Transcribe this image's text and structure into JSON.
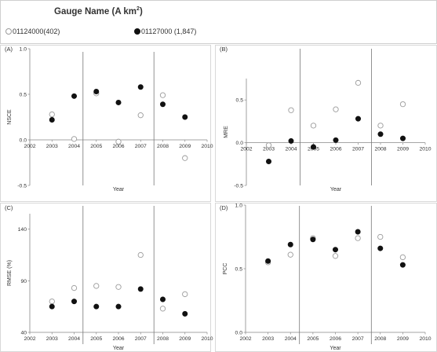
{
  "legend": {
    "title": "Gauge Name (A km²)",
    "title_main": "Gauge Name (A km",
    "title_sup": "2",
    "title_end": ")",
    "entries": [
      {
        "label": "01124000(402)",
        "marker": "open"
      },
      {
        "label": "01127000 (1,847)",
        "marker": "filled"
      }
    ]
  },
  "colors": {
    "open_marker_stroke": "#9b9b9b",
    "filled_marker": "#111111",
    "axis": "#888888",
    "divider": "#777777"
  },
  "chart_data": [
    {
      "panel": "(A)",
      "type": "scatter",
      "ylabel": "NSCE",
      "xlabel": "Year",
      "xlim": [
        2002,
        2010
      ],
      "ylim": [
        -0.5,
        1.0
      ],
      "xticks": [
        2002,
        2003,
        2004,
        2005,
        2006,
        2007,
        2008,
        2009,
        2010
      ],
      "xtick_labels": [
        "2002",
        "2003",
        "2004",
        "2005",
        "2006",
        "2007",
        "2008",
        "2009",
        "2010"
      ],
      "yticks": [
        -0.5,
        0,
        0.5,
        1.0
      ],
      "ytick_labels": [
        "-0.5",
        "0.0",
        "0.5",
        "1.0"
      ],
      "dividers": [
        2004.4,
        2007.6
      ],
      "series": [
        {
          "name": "01124000(402)",
          "marker": "open",
          "points": [
            [
              2003,
              0.28
            ],
            [
              2004,
              0.01
            ],
            [
              2005,
              0.51
            ],
            [
              2006,
              -0.02
            ],
            [
              2007,
              0.27
            ],
            [
              2008,
              0.49
            ],
            [
              2009,
              -0.2
            ]
          ]
        },
        {
          "name": "01127000 (1,847)",
          "marker": "filled",
          "points": [
            [
              2003,
              0.22
            ],
            [
              2004,
              0.48
            ],
            [
              2005,
              0.53
            ],
            [
              2006,
              0.41
            ],
            [
              2007,
              0.58
            ],
            [
              2008,
              0.39
            ],
            [
              2009,
              0.25
            ]
          ]
        }
      ]
    },
    {
      "panel": "(B)",
      "type": "scatter",
      "ylabel": "MRE",
      "xlabel": "Year",
      "xlim": [
        2002,
        2010
      ],
      "ylim": [
        -0.5,
        0.75
      ],
      "xticks": [
        2002,
        2003,
        2004,
        2005,
        2006,
        2007,
        2008,
        2009,
        2010
      ],
      "xtick_labels": [
        "2002",
        "2003",
        "2004",
        "2005",
        "2006",
        "2007",
        "2008",
        "2009",
        "2010"
      ],
      "yticks": [
        -0.5,
        0,
        0.5
      ],
      "ytick_labels": [
        "-0.5",
        "0.0",
        "0.5"
      ],
      "dividers": [
        2004.4,
        2007.6
      ],
      "series": [
        {
          "name": "01124000(402)",
          "marker": "open",
          "points": [
            [
              2003,
              -0.03
            ],
            [
              2004,
              0.38
            ],
            [
              2005,
              0.2
            ],
            [
              2006,
              0.39
            ],
            [
              2007,
              0.7
            ],
            [
              2008,
              0.2
            ],
            [
              2009,
              0.45
            ]
          ]
        },
        {
          "name": "01127000 (1,847)",
          "marker": "filled",
          "points": [
            [
              2003,
              -0.22
            ],
            [
              2004,
              0.02
            ],
            [
              2005,
              -0.05
            ],
            [
              2006,
              0.03
            ],
            [
              2007,
              0.28
            ],
            [
              2008,
              0.1
            ],
            [
              2009,
              0.05
            ]
          ]
        }
      ]
    },
    {
      "panel": "(C)",
      "type": "scatter",
      "ylabel": "RMSE (%)",
      "xlabel": "Year",
      "xlim": [
        2002,
        2010
      ],
      "ylim": [
        40,
        155
      ],
      "xticks": [
        2002,
        2003,
        2004,
        2005,
        2006,
        2007,
        2008,
        2009,
        2010
      ],
      "xtick_labels": [
        "2002",
        "2003",
        "2004",
        "2005",
        "2006",
        "2007",
        "2008",
        "2009",
        "2010"
      ],
      "yticks": [
        40,
        90,
        140
      ],
      "ytick_labels": [
        "40",
        "90",
        "140"
      ],
      "dividers": [
        2004.4,
        2007.6
      ],
      "series": [
        {
          "name": "01124000(402)",
          "marker": "open",
          "points": [
            [
              2003,
              70
            ],
            [
              2004,
              83
            ],
            [
              2005,
              85
            ],
            [
              2006,
              84
            ],
            [
              2007,
              115
            ],
            [
              2008,
              63
            ],
            [
              2009,
              77
            ]
          ]
        },
        {
          "name": "01127000 (1,847)",
          "marker": "filled",
          "points": [
            [
              2003,
              65
            ],
            [
              2004,
              70
            ],
            [
              2005,
              65
            ],
            [
              2006,
              65
            ],
            [
              2007,
              82
            ],
            [
              2008,
              72
            ],
            [
              2009,
              58
            ]
          ]
        }
      ]
    },
    {
      "panel": "(D)",
      "type": "scatter",
      "ylabel": "PCC",
      "xlabel": "Year",
      "xlim": [
        2002,
        2010
      ],
      "ylim": [
        0.0,
        1.0
      ],
      "xticks": [
        2002,
        2003,
        2004,
        2005,
        2006,
        2007,
        2008,
        2009,
        2010
      ],
      "xtick_labels": [
        "2002",
        "2003",
        "2004",
        "2005",
        "2006",
        "2007",
        "2008",
        "2009",
        "2010"
      ],
      "yticks": [
        0.0,
        0.5,
        1.0
      ],
      "ytick_labels": [
        "0.0",
        "0.5",
        "1.0"
      ],
      "dividers": [
        2004.4,
        2007.6
      ],
      "series": [
        {
          "name": "01124000(402)",
          "marker": "open",
          "points": [
            [
              2003,
              0.55
            ],
            [
              2004,
              0.61
            ],
            [
              2005,
              0.74
            ],
            [
              2006,
              0.6
            ],
            [
              2007,
              0.74
            ],
            [
              2008,
              0.75
            ],
            [
              2009,
              0.59
            ]
          ]
        },
        {
          "name": "01127000 (1,847)",
          "marker": "filled",
          "points": [
            [
              2003,
              0.56
            ],
            [
              2004,
              0.69
            ],
            [
              2005,
              0.73
            ],
            [
              2006,
              0.65
            ],
            [
              2007,
              0.79
            ],
            [
              2008,
              0.66
            ],
            [
              2009,
              0.53
            ]
          ]
        }
      ]
    }
  ]
}
